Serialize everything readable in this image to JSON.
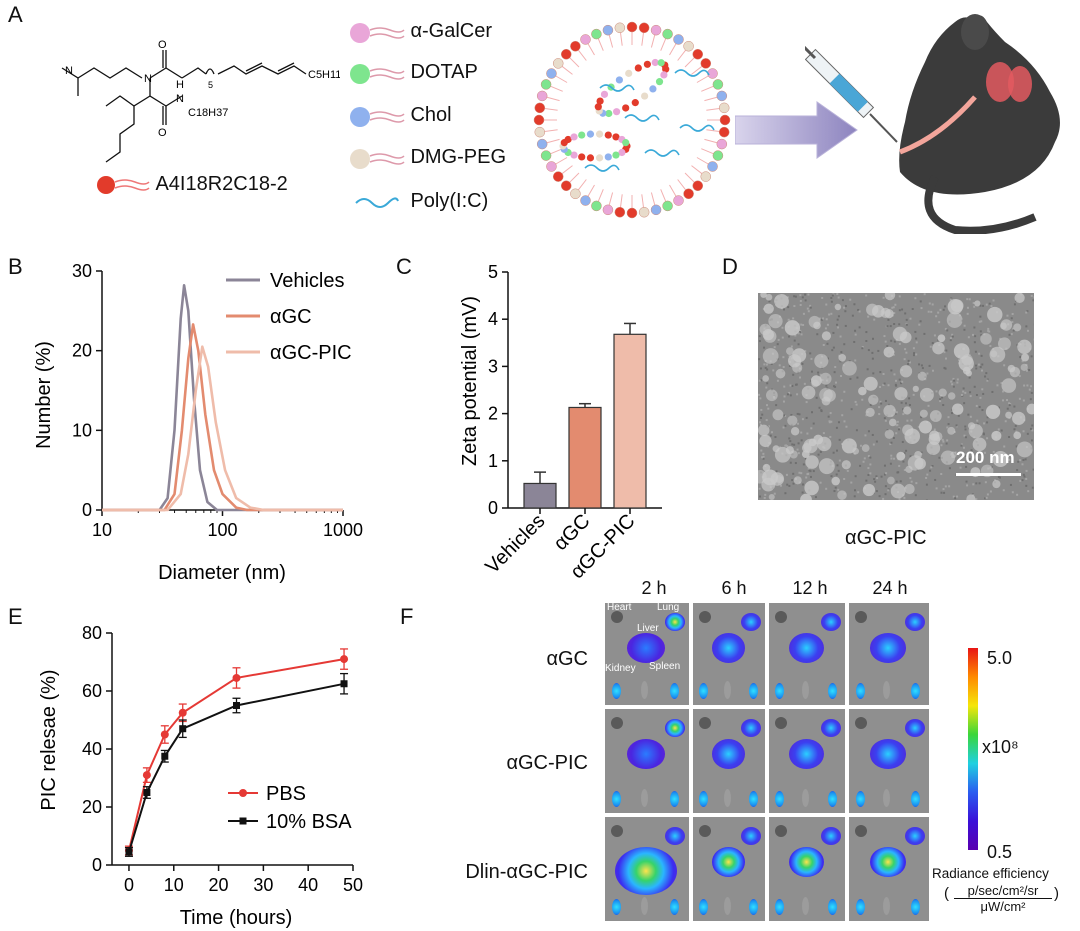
{
  "panels": {
    "A": "A",
    "B": "B",
    "C": "C",
    "D": "D",
    "E": "E",
    "F": "F"
  },
  "panelA": {
    "lipid_name": "A4I18R2C18-2",
    "chem_labels": {
      "c5h11": "C5H11",
      "c18h37": "C18H37",
      "n": "N",
      "nh": "N",
      "h": "H",
      "o": "O",
      "five": "5"
    },
    "components": [
      {
        "label": "α-GalCer",
        "color": "#e9a6d8"
      },
      {
        "label": "DOTAP",
        "color": "#7ee58e"
      },
      {
        "label": "Chol",
        "color": "#8fb1ee"
      },
      {
        "label": "DMG-PEG",
        "color": "#e8dccb"
      },
      {
        "label": "Poly(I:C)",
        "color": "#3aa9d8"
      }
    ]
  },
  "chart_data": [
    {
      "panel": "B",
      "type": "line",
      "xlabel": "Diameter (nm)",
      "ylabel": "Number (%)",
      "xscale": "log",
      "xlim": [
        10,
        1000
      ],
      "ylim": [
        0,
        30
      ],
      "xticks": [
        "10",
        "100",
        "1000"
      ],
      "yticks": [
        "0",
        "10",
        "20",
        "30"
      ],
      "legend_position": "top-right",
      "series": [
        {
          "name": "Vehicles",
          "color": "#8b8597",
          "peak_x": 48,
          "peak_y": 28.2,
          "points": [
            [
              30,
              0
            ],
            [
              35,
              1.5
            ],
            [
              40,
              10
            ],
            [
              45,
              24
            ],
            [
              48,
              28.2
            ],
            [
              52,
              25
            ],
            [
              58,
              14
            ],
            [
              65,
              5
            ],
            [
              75,
              1
            ],
            [
              90,
              0
            ]
          ]
        },
        {
          "name": "αGC",
          "color": "#e38b6f",
          "peak_x": 57,
          "peak_y": 23.3,
          "points": [
            [
              33,
              0
            ],
            [
              40,
              2
            ],
            [
              46,
              10
            ],
            [
              52,
              19
            ],
            [
              57,
              23.3
            ],
            [
              63,
              20
            ],
            [
              72,
              12
            ],
            [
              85,
              5
            ],
            [
              100,
              2
            ],
            [
              130,
              0.3
            ],
            [
              160,
              0
            ]
          ]
        },
        {
          "name": "αGC-PIC",
          "color": "#efbcaa",
          "peak_x": 68,
          "peak_y": 20.5,
          "points": [
            [
              35,
              0
            ],
            [
              45,
              2
            ],
            [
              52,
              7
            ],
            [
              60,
              15
            ],
            [
              68,
              20.5
            ],
            [
              76,
              18
            ],
            [
              88,
              11
            ],
            [
              105,
              5
            ],
            [
              130,
              1.5
            ],
            [
              170,
              0.3
            ],
            [
              220,
              0
            ]
          ]
        }
      ]
    },
    {
      "panel": "C",
      "type": "bar",
      "ylabel": "Zeta potential (mV)",
      "ylim": [
        0,
        5
      ],
      "yticks": [
        "0",
        "1",
        "2",
        "3",
        "4",
        "5"
      ],
      "categories": [
        "Vehicles",
        "αGC",
        "αGC-PIC"
      ],
      "values": [
        0.52,
        2.13,
        3.68
      ],
      "errors": [
        0.24,
        0.08,
        0.23
      ],
      "colors": [
        "#8b8597",
        "#e38b6f",
        "#efbcaa"
      ]
    },
    {
      "panel": "E",
      "type": "line",
      "xlabel": "Time (hours)",
      "ylabel": "PIC relesae (%)",
      "xlim": [
        0,
        50
      ],
      "ylim": [
        0,
        80
      ],
      "xticks": [
        "0",
        "10",
        "20",
        "30",
        "40",
        "50"
      ],
      "yticks": [
        "0",
        "20",
        "40",
        "60",
        "80"
      ],
      "legend_position": "bottom-center",
      "series": [
        {
          "name": "PBS",
          "color": "#e53935",
          "marker": "circle",
          "x": [
            0,
            4,
            8,
            12,
            24,
            48
          ],
          "y": [
            5,
            31,
            45,
            52.5,
            64.5,
            71
          ],
          "err": [
            1.5,
            2.5,
            3,
            3,
            3.5,
            3.5
          ]
        },
        {
          "name": "10% BSA",
          "color": "#111111",
          "marker": "square",
          "x": [
            0,
            4,
            8,
            12,
            24,
            48
          ],
          "y": [
            4.5,
            25,
            37.5,
            47,
            55,
            62.5
          ],
          "err": [
            1.5,
            2,
            2,
            3,
            2.5,
            3.5
          ]
        }
      ]
    }
  ],
  "panelD": {
    "scalebar": "200 nm",
    "caption": "αGC-PIC"
  },
  "panelF": {
    "timepoints": [
      "2 h",
      "6 h",
      "12 h",
      "24 h"
    ],
    "rows": [
      "αGC",
      "αGC-PIC",
      "Dlin-αGC-PIC"
    ],
    "organ_labels": {
      "heart": "Heart",
      "lung": "Lung",
      "liver": "Liver",
      "kidney": "Kidney",
      "spleen": "Spleen"
    },
    "colorbar": {
      "max": "5.0",
      "min": "0.5",
      "unit": "x10⁸",
      "title": "Radiance efficiency",
      "num": "p/sec/cm²/sr",
      "den": "μW/cm²",
      "open": "(",
      "close": ")"
    }
  }
}
